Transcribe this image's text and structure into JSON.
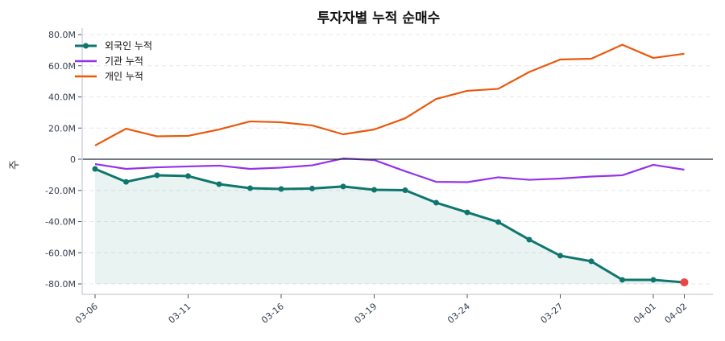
{
  "chart_data": {
    "type": "line",
    "title": "투자자별 누적 순매수",
    "xlabel": "",
    "ylabel": "주",
    "ylim": [
      -85,
      85
    ],
    "yticks": [
      80,
      60,
      40,
      20,
      0,
      -20,
      -40,
      -60,
      -80
    ],
    "ytick_labels": [
      "80.0M",
      "60.0M",
      "40.0M",
      "20.0M",
      "0",
      "-20.0M",
      "-40.0M",
      "-60.0M",
      "-80.0M"
    ],
    "y_unit": "M",
    "x_tick_labels": [
      "03-06",
      "",
      "",
      "03-11",
      "",
      "",
      "03-16",
      "",
      "",
      "03-19",
      "",
      "",
      "03-24",
      "",
      "",
      "03-27",
      "",
      "",
      "04-01",
      "04-02"
    ],
    "grid": "horizontal dashed",
    "legend": "top-left",
    "series": [
      {
        "name": "외국인 누적",
        "color": "#0f766e",
        "markers": true,
        "fill": true,
        "values": [
          -6.2,
          -14.5,
          -10.3,
          -10.8,
          -16.0,
          -18.6,
          -19.1,
          -18.8,
          -17.5,
          -19.6,
          -19.9,
          -27.9,
          -34.1,
          -40.3,
          -51.6,
          -61.9,
          -65.5,
          -77.4,
          -77.4,
          -79.0
        ]
      },
      {
        "name": "기관 누적",
        "color": "#9333ea",
        "markers": false,
        "values": [
          -3.1,
          -6.2,
          -5.2,
          -4.6,
          -4.1,
          -6.2,
          -5.4,
          -3.9,
          0.5,
          -0.5,
          -7.7,
          -14.5,
          -14.7,
          -11.6,
          -13.2,
          -12.4,
          -11.1,
          -10.3,
          -3.6,
          -6.7
        ]
      },
      {
        "name": "개인 누적",
        "color": "#ea580c",
        "markers": false,
        "values": [
          8.8,
          19.6,
          14.7,
          15.0,
          19.1,
          24.3,
          23.7,
          21.7,
          16.0,
          19.1,
          26.3,
          38.7,
          43.9,
          45.2,
          56.0,
          64.0,
          64.5,
          73.5,
          65.0,
          67.7
        ]
      }
    ],
    "highlight_last_color": "#ef4444"
  }
}
